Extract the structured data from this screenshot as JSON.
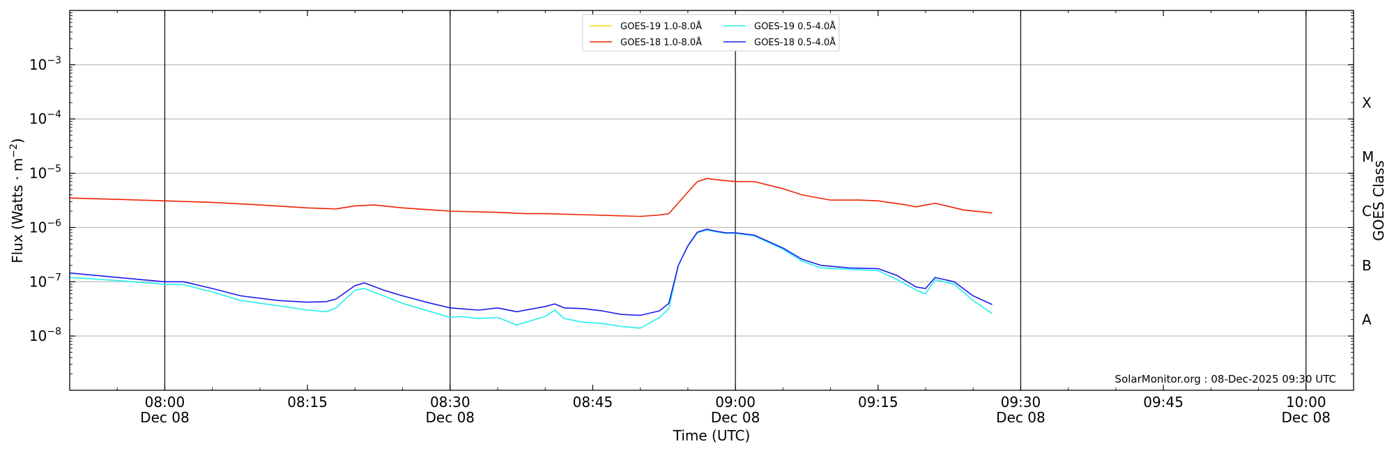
{
  "chart_data": {
    "type": "line",
    "title": "",
    "xlabel": "Time (UTC)",
    "ylabel": "Flux (Watts · m⁻²)",
    "ylabel_right": "GOES Class",
    "yscale": "log",
    "xlim": [
      "07:50",
      "10:05"
    ],
    "ylim": [
      1e-09,
      0.01
    ],
    "grid": "horizontal at decades",
    "x_ticks": [
      {
        "time": "08:00",
        "date": "Dec 08"
      },
      {
        "time": "08:15",
        "date": ""
      },
      {
        "time": "08:30",
        "date": "Dec 08"
      },
      {
        "time": "08:45",
        "date": ""
      },
      {
        "time": "09:00",
        "date": "Dec 08"
      },
      {
        "time": "09:15",
        "date": ""
      },
      {
        "time": "09:30",
        "date": "Dec 08"
      },
      {
        "time": "09:45",
        "date": ""
      },
      {
        "time": "10:00",
        "date": "Dec 08"
      }
    ],
    "vlines": [
      "08:00",
      "08:30",
      "09:00",
      "09:30",
      "10:00"
    ],
    "y_ticks": [
      {
        "value": 0.001,
        "mant": "10",
        "exp": "−3"
      },
      {
        "value": 0.0001,
        "mant": "10",
        "exp": "−4"
      },
      {
        "value": 1e-05,
        "mant": "10",
        "exp": "−5"
      },
      {
        "value": 1e-06,
        "mant": "10",
        "exp": "−6"
      },
      {
        "value": 1e-07,
        "mant": "10",
        "exp": "−7"
      },
      {
        "value": 1e-08,
        "mant": "10",
        "exp": "−8"
      }
    ],
    "class_labels": [
      {
        "label": "X",
        "value": 0.0002
      },
      {
        "label": "M",
        "value": 2e-05
      },
      {
        "label": "C",
        "value": 2e-06
      },
      {
        "label": "B",
        "value": 2e-07
      },
      {
        "label": "A",
        "value": 2e-08
      }
    ],
    "legend_position": "top-center",
    "legend": [
      {
        "name": "GOES-19 1.0-8.0Å",
        "color": "#ffd700"
      },
      {
        "name": "GOES-18 1.0-8.0Å",
        "color": "#ee2200"
      },
      {
        "name": "GOES-19 0.5-4.0Å",
        "color": "#22eeee"
      },
      {
        "name": "GOES-18 0.5-4.0Å",
        "color": "#1a1aee"
      }
    ],
    "series": [
      {
        "name": "GOES-18 1.0-8.0Å",
        "color": "#ee2200",
        "x": [
          "07:50",
          "07:55",
          "08:00",
          "08:05",
          "08:10",
          "08:15",
          "08:18",
          "08:20",
          "08:22",
          "08:25",
          "08:30",
          "08:35",
          "08:38",
          "08:40",
          "08:45",
          "08:50",
          "08:52",
          "08:53",
          "08:55",
          "08:56",
          "08:57",
          "08:58",
          "09:00",
          "09:02",
          "09:05",
          "09:07",
          "09:10",
          "09:13",
          "09:15",
          "09:18",
          "09:19",
          "09:21",
          "09:24",
          "09:27"
        ],
        "y": [
          3.5e-06,
          3.3e-06,
          3.1e-06,
          2.9e-06,
          2.6e-06,
          2.3e-06,
          2.2e-06,
          2.5e-06,
          2.6e-06,
          2.3e-06,
          2e-06,
          1.9e-06,
          1.8e-06,
          1.8e-06,
          1.7e-06,
          1.6e-06,
          1.7e-06,
          1.8e-06,
          4.5e-06,
          7e-06,
          8e-06,
          7.6e-06,
          7e-06,
          7e-06,
          5.2e-06,
          4e-06,
          3.2e-06,
          3.2e-06,
          3.1e-06,
          2.6e-06,
          2.4e-06,
          2.8e-06,
          2.1e-06,
          1.85e-06
        ]
      },
      {
        "name": "GOES-19 0.5-4.0Å",
        "color": "#22eeee",
        "x": [
          "07:50",
          "07:55",
          "08:00",
          "08:02",
          "08:05",
          "08:08",
          "08:12",
          "08:15",
          "08:17",
          "08:18",
          "08:20",
          "08:21",
          "08:23",
          "08:25",
          "08:28",
          "08:30",
          "08:31",
          "08:33",
          "08:35",
          "08:37",
          "08:40",
          "08:41",
          "08:42",
          "08:44",
          "08:46",
          "08:48",
          "08:50",
          "08:52",
          "08:53",
          "08:54",
          "08:55",
          "08:56",
          "08:57",
          "08:58",
          "08:59",
          "09:00",
          "09:02",
          "09:05",
          "09:07",
          "09:09",
          "09:12",
          "09:15",
          "09:17",
          "09:19",
          "09:20",
          "09:21",
          "09:23",
          "09:25",
          "09:27"
        ],
        "y": [
          1.2e-07,
          1.05e-07,
          9e-08,
          8.8e-08,
          6.5e-08,
          4.5e-08,
          3.6e-08,
          3e-08,
          2.8e-08,
          3.3e-08,
          7e-08,
          7.5e-08,
          5.5e-08,
          4e-08,
          2.8e-08,
          2.2e-08,
          2.3e-08,
          2.1e-08,
          2.2e-08,
          1.6e-08,
          2.3e-08,
          3e-08,
          2.1e-08,
          1.8e-08,
          1.7e-08,
          1.5e-08,
          1.4e-08,
          2.2e-08,
          3.2e-08,
          2e-07,
          4.5e-07,
          8e-07,
          9e-07,
          8.3e-07,
          7.8e-07,
          7.8e-07,
          7e-07,
          4e-07,
          2.4e-07,
          1.8e-07,
          1.7e-07,
          1.6e-07,
          1.1e-07,
          7e-08,
          6e-08,
          1.1e-07,
          9e-08,
          4.5e-08,
          2.6e-08
        ]
      },
      {
        "name": "GOES-18 0.5-4.0Å",
        "color": "#1a1aee",
        "x": [
          "07:50",
          "07:55",
          "08:00",
          "08:02",
          "08:05",
          "08:08",
          "08:12",
          "08:15",
          "08:17",
          "08:18",
          "08:20",
          "08:21",
          "08:23",
          "08:25",
          "08:28",
          "08:30",
          "08:31",
          "08:33",
          "08:35",
          "08:37",
          "08:40",
          "08:41",
          "08:42",
          "08:44",
          "08:46",
          "08:48",
          "08:50",
          "08:52",
          "08:53",
          "08:54",
          "08:55",
          "08:56",
          "08:57",
          "08:58",
          "08:59",
          "09:00",
          "09:02",
          "09:05",
          "09:07",
          "09:09",
          "09:12",
          "09:15",
          "09:17",
          "09:19",
          "09:20",
          "09:21",
          "09:23",
          "09:25",
          "09:27"
        ],
        "y": [
          1.45e-07,
          1.2e-07,
          1e-07,
          1e-07,
          7.5e-08,
          5.5e-08,
          4.5e-08,
          4.2e-08,
          4.3e-08,
          4.8e-08,
          8.5e-08,
          9.5e-08,
          7e-08,
          5.5e-08,
          4e-08,
          3.3e-08,
          3.2e-08,
          3e-08,
          3.3e-08,
          2.8e-08,
          3.5e-08,
          3.9e-08,
          3.3e-08,
          3.2e-08,
          2.9e-08,
          2.5e-08,
          2.4e-08,
          2.9e-08,
          4e-08,
          2e-07,
          4.6e-07,
          8.2e-07,
          9.3e-07,
          8.5e-07,
          8e-07,
          8e-07,
          7.2e-07,
          4.2e-07,
          2.6e-07,
          2e-07,
          1.8e-07,
          1.75e-07,
          1.3e-07,
          8e-08,
          7.5e-08,
          1.2e-07,
          1e-07,
          5.5e-08,
          3.8e-08
        ]
      },
      {
        "name": "GOES-19 1.0-8.0Å",
        "color": "#ffd700",
        "x": [],
        "y": []
      }
    ]
  },
  "credit": "SolarMonitor.org : 08-Dec-2025 09:30 UTC"
}
